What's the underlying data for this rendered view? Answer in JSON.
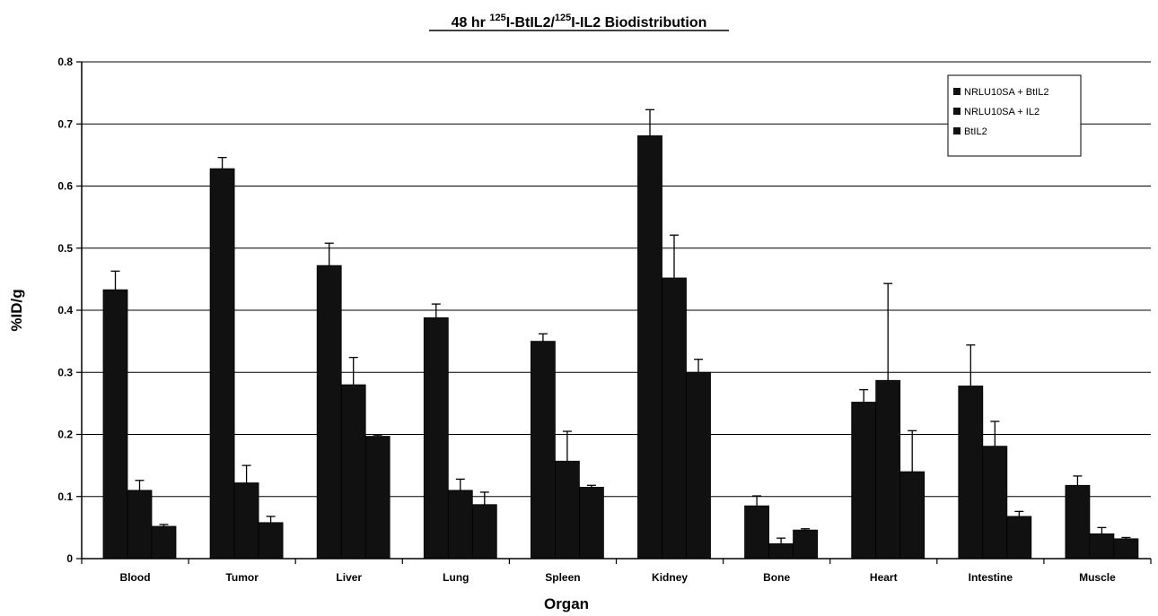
{
  "chart_data": {
    "type": "bar",
    "title": {
      "prefix": "48 hr ",
      "sup1": "125",
      "mid": "I-BtIL2/",
      "sup2": "125",
      "suffix": "I-IL2 Biodistribution"
    },
    "xlabel": "Organ",
    "ylabel": "%ID/g",
    "ylim": [
      0,
      0.8
    ],
    "yticks": [
      "0",
      "0.1",
      "0.2",
      "0.3",
      "0.4",
      "0.5",
      "0.6",
      "0.7",
      "0.8"
    ],
    "grid": true,
    "legend_position": "top-right",
    "categories": [
      "Blood",
      "Tumor",
      "Liver",
      "Lung",
      "Spleen",
      "Kidney",
      "Bone",
      "Heart",
      "Intestine",
      "Muscle"
    ],
    "series": [
      {
        "name": "NRLU10SA + BtIL2",
        "color": "#111111",
        "values": [
          0.433,
          0.628,
          0.472,
          0.388,
          0.35,
          0.681,
          0.085,
          0.252,
          0.278,
          0.118
        ],
        "errors": [
          0.03,
          0.018,
          0.036,
          0.022,
          0.012,
          0.042,
          0.016,
          0.02,
          0.066,
          0.015
        ]
      },
      {
        "name": "NRLU10SA + IL2",
        "color": "#111111",
        "values": [
          0.11,
          0.122,
          0.28,
          0.11,
          0.157,
          0.452,
          0.024,
          0.287,
          0.181,
          0.04
        ],
        "errors": [
          0.016,
          0.028,
          0.044,
          0.018,
          0.048,
          0.069,
          0.009,
          0.156,
          0.04,
          0.01
        ]
      },
      {
        "name": "BtIL2",
        "color": "#111111",
        "values": [
          0.052,
          0.058,
          0.197,
          0.087,
          0.115,
          0.3,
          0.046,
          0.14,
          0.068,
          0.032
        ],
        "errors": [
          0.003,
          0.01,
          0.002,
          0.02,
          0.003,
          0.021,
          0.002,
          0.066,
          0.008,
          0.002
        ]
      }
    ]
  }
}
